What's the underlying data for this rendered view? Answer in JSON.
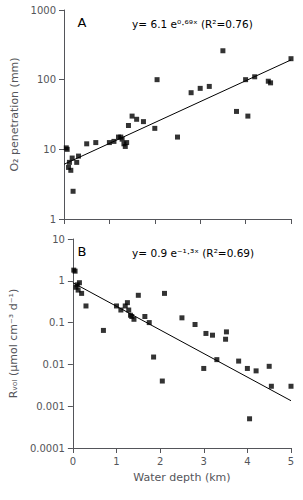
{
  "chart_data": [
    {
      "type": "scatter",
      "title": "A",
      "ylabel": "O₂ penetration (mm)",
      "annotations": [
        "y= 6.1 e⁰·⁶⁹ˣ (R²=0.76)"
      ],
      "log": "y",
      "grid": false,
      "tick_labels": "y",
      "xlim": [
        0,
        5
      ],
      "xticks": [
        0,
        1,
        2,
        3,
        4,
        5
      ],
      "ylim": [
        1,
        1000
      ],
      "yticks": [
        1,
        10,
        100,
        1000
      ],
      "series": [
        {
          "type": "scatter",
          "marker": "square",
          "color": "black",
          "x": [
            0.05,
            0.07,
            0.1,
            0.12,
            0.15,
            0.18,
            0.2,
            0.28,
            0.32,
            0.5,
            0.7,
            1.0,
            1.1,
            1.2,
            1.25,
            1.28,
            1.32,
            1.35,
            1.38,
            1.42,
            1.5,
            1.6,
            1.75,
            2.0,
            2.05,
            2.5,
            2.8,
            3.0,
            3.2,
            3.5,
            3.8,
            4.0,
            4.05,
            4.2,
            4.5,
            4.55,
            5.0
          ],
          "values": [
            10.5,
            10.0,
            5.5,
            6.5,
            5.0,
            7.5,
            2.5,
            6.5,
            8.0,
            12.0,
            12.5,
            12.5,
            13.0,
            15.0,
            15.0,
            14.0,
            12.0,
            11.0,
            12.5,
            22.0,
            30.0,
            27.0,
            25.0,
            20.0,
            100.0,
            15.0,
            65.0,
            75.0,
            80.0,
            260.0,
            35.0,
            100.0,
            30.0,
            110.0,
            95.0,
            90.0,
            200.0
          ]
        },
        {
          "type": "line",
          "line_style": "solid",
          "color": "black",
          "x": [
            0,
            5
          ],
          "values": [
            6.1,
            192.15
          ]
        }
      ]
    },
    {
      "type": "scatter",
      "title": "B",
      "xlabel": "Water depth (km)",
      "ylabel": "Rᵥₒₗ (μmol cm⁻³ d⁻¹)",
      "annotations": [
        "y= 0.9 e⁻¹·³ˣ (R²=0.69)"
      ],
      "log": "y",
      "grid": false,
      "xlim": [
        0,
        5
      ],
      "xticks": [
        0,
        1,
        2,
        3,
        4,
        5
      ],
      "ylim": [
        0.0001,
        10
      ],
      "yticks": [
        0.0001,
        0.001,
        0.01,
        0.1,
        1,
        10
      ],
      "series": [
        {
          "type": "scatter",
          "marker": "square",
          "color": "black",
          "x": [
            0.02,
            0.05,
            0.07,
            0.1,
            0.12,
            0.15,
            0.2,
            0.3,
            0.7,
            1.0,
            1.1,
            1.2,
            1.25,
            1.28,
            1.32,
            1.35,
            1.4,
            1.5,
            1.65,
            1.75,
            1.85,
            2.05,
            2.1,
            2.5,
            2.8,
            3.0,
            3.05,
            3.2,
            3.3,
            3.5,
            3.52,
            3.8,
            4.0,
            4.05,
            4.2,
            4.5,
            4.55,
            5.0
          ],
          "values": [
            1.8,
            1.7,
            0.7,
            0.8,
            0.6,
            0.9,
            0.5,
            0.25,
            0.065,
            0.25,
            0.2,
            0.25,
            0.3,
            0.2,
            0.15,
            0.14,
            0.12,
            0.45,
            0.14,
            0.1,
            0.015,
            0.004,
            0.5,
            0.13,
            0.09,
            0.008,
            0.055,
            0.05,
            0.013,
            0.04,
            0.06,
            0.012,
            0.008,
            0.0005,
            0.007,
            0.009,
            0.003,
            0.003
          ]
        },
        {
          "type": "line",
          "line_style": "solid",
          "color": "black",
          "x": [
            0,
            5
          ],
          "values": [
            0.9,
            0.0013531
          ]
        }
      ]
    }
  ]
}
